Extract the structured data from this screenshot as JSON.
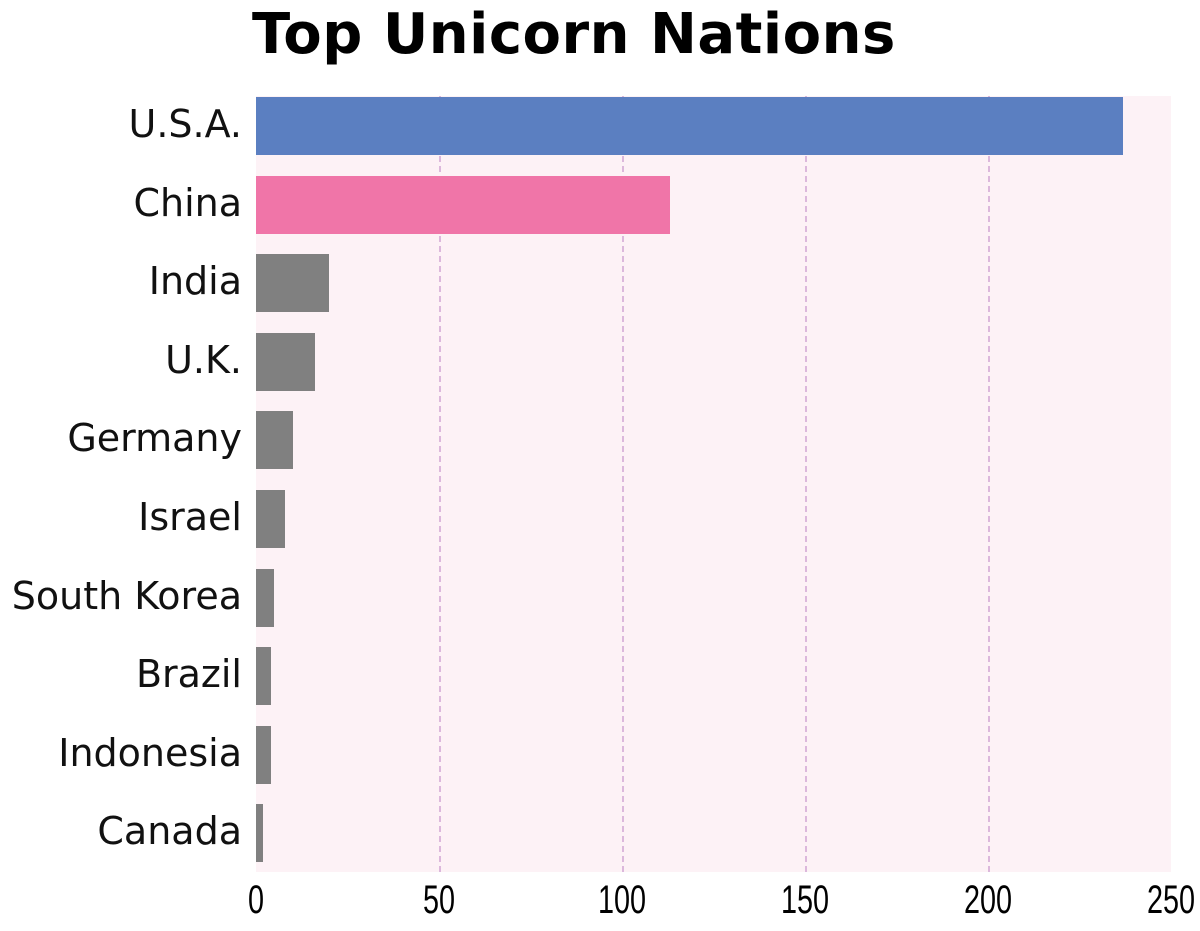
{
  "chart_data": {
    "type": "bar",
    "orientation": "horizontal",
    "title": "Top Unicorn Nations",
    "xlabel": "",
    "ylabel": "",
    "categories": [
      "U.S.A.",
      "China",
      "India",
      "U.K.",
      "Germany",
      "Israel",
      "South Korea",
      "Brazil",
      "Indonesia",
      "Canada"
    ],
    "values": [
      237,
      113,
      20,
      16,
      10,
      8,
      5,
      4,
      4,
      2
    ],
    "colors": [
      "#5b7fc1",
      "#f075a8",
      "#808080",
      "#808080",
      "#808080",
      "#808080",
      "#808080",
      "#808080",
      "#808080",
      "#808080"
    ],
    "xlim": [
      0,
      250
    ],
    "xticks": [
      "0",
      "50",
      "100",
      "150",
      "200",
      "250"
    ],
    "grid": "vertical dashed",
    "legend": "none",
    "plot_background": "#fdf2f6"
  }
}
